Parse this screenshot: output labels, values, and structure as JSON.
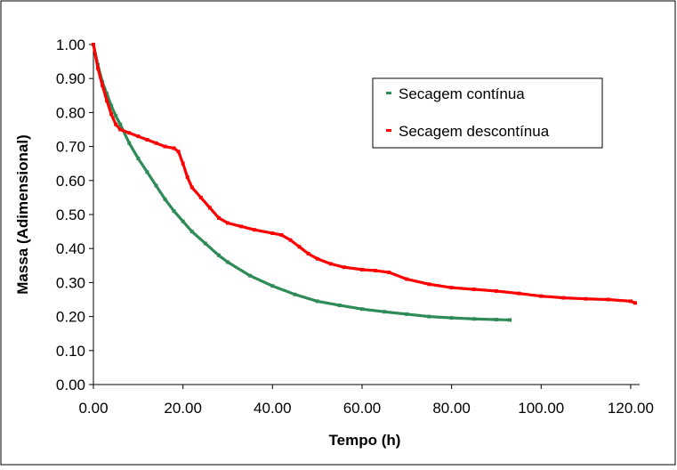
{
  "chart_data": {
    "type": "scatter",
    "title": "",
    "xlabel": "Tempo (h)",
    "ylabel": "Massa (Adimensional)",
    "xlim": [
      0,
      122
    ],
    "ylim": [
      0,
      1
    ],
    "x_ticks": [
      "0.00",
      "20.00",
      "40.00",
      "60.00",
      "80.00",
      "100.00",
      "120.00"
    ],
    "y_ticks": [
      "0.00",
      "0.10",
      "0.20",
      "0.30",
      "0.40",
      "0.50",
      "0.60",
      "0.70",
      "0.80",
      "0.90",
      "1.00"
    ],
    "grid": false,
    "legend_position": "top-right",
    "series": [
      {
        "name": "Secagem contínua",
        "color": "#2e8b57",
        "x": [
          0,
          1,
          2,
          3,
          4,
          5,
          6,
          8,
          10,
          12,
          14,
          16,
          18,
          20,
          22,
          25,
          28,
          30,
          35,
          40,
          45,
          50,
          55,
          60,
          65,
          70,
          75,
          80,
          85,
          90,
          93
        ],
        "y": [
          1.0,
          0.94,
          0.89,
          0.855,
          0.82,
          0.79,
          0.765,
          0.71,
          0.665,
          0.625,
          0.585,
          0.545,
          0.51,
          0.48,
          0.45,
          0.415,
          0.38,
          0.36,
          0.32,
          0.29,
          0.265,
          0.245,
          0.233,
          0.222,
          0.214,
          0.207,
          0.2,
          0.196,
          0.193,
          0.191,
          0.19
        ]
      },
      {
        "name": "Secagem descontínua",
        "color": "#ff0000",
        "x": [
          0,
          1,
          2,
          3,
          4,
          5,
          6,
          8,
          10,
          12,
          14,
          16,
          18,
          19,
          20,
          21,
          22,
          24,
          26,
          28,
          30,
          33,
          36,
          40,
          42,
          44,
          46,
          48,
          50,
          53,
          56,
          60,
          63,
          66,
          70,
          75,
          80,
          85,
          90,
          95,
          100,
          105,
          110,
          115,
          120,
          121
        ],
        "y": [
          1.0,
          0.93,
          0.88,
          0.835,
          0.795,
          0.765,
          0.75,
          0.74,
          0.73,
          0.72,
          0.71,
          0.7,
          0.695,
          0.685,
          0.65,
          0.61,
          0.58,
          0.55,
          0.52,
          0.49,
          0.475,
          0.465,
          0.455,
          0.445,
          0.44,
          0.425,
          0.405,
          0.385,
          0.37,
          0.355,
          0.345,
          0.338,
          0.335,
          0.33,
          0.31,
          0.295,
          0.285,
          0.28,
          0.275,
          0.268,
          0.26,
          0.255,
          0.252,
          0.25,
          0.245,
          0.24
        ]
      }
    ]
  }
}
